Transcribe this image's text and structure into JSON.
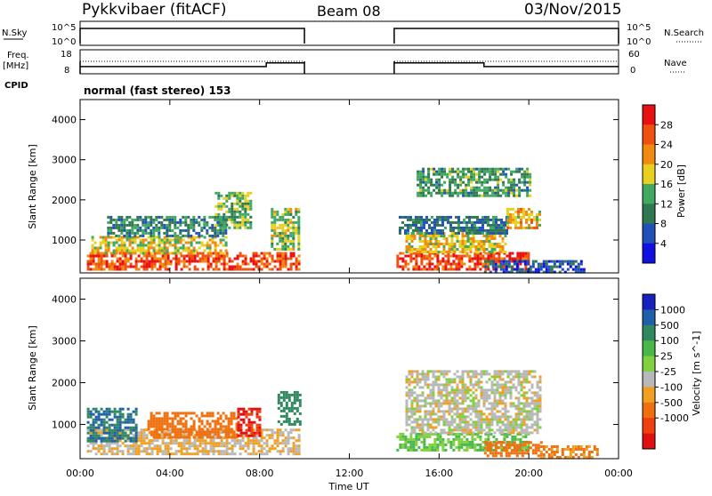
{
  "header": {
    "station": "Pykkvibaer (fitACF)",
    "beam": "Beam 08",
    "date": "03/Nov/2015"
  },
  "side_labels": {
    "nsky": "N.Sky",
    "freq": "Freq.",
    "freq_unit": "[MHz]",
    "cpid": "CPID",
    "nsearch": "N.Search",
    "nave": "Nave"
  },
  "cpid_text": "normal (fast stereo) 153",
  "noise_axis": {
    "top": "10^5",
    "bottom": "10^0"
  },
  "freq_axis": {
    "left_top": "18",
    "left_bottom": "8",
    "right_top": "60",
    "right_bottom": "0"
  },
  "axes": {
    "ylabel": "Slant Range [km]",
    "xlabel": "Time UT",
    "y_ticks": [
      "1000",
      "2000",
      "3000",
      "4000"
    ],
    "x_ticks": [
      "00:00",
      "04:00",
      "08:00",
      "12:00",
      "16:00",
      "20:00",
      "00:00"
    ]
  },
  "colorbars": {
    "power": {
      "label": "Power [dB]",
      "ticks": [
        "4",
        "8",
        "12",
        "16",
        "20",
        "24",
        "28"
      ],
      "colors": [
        "#1010e0",
        "#2050b8",
        "#307850",
        "#40a860",
        "#e8d020",
        "#f08a10",
        "#f05010",
        "#e81010"
      ]
    },
    "velocity": {
      "label": "Velocity [m s^-1]",
      "ticks": [
        "1000",
        "500",
        "100",
        "25",
        "-25",
        "-100",
        "-500",
        "-1000"
      ],
      "colors": [
        "#1820c0",
        "#2060a8",
        "#308860",
        "#48b848",
        "#80d040",
        "#b8b8b8",
        "#f0a020",
        "#f07010",
        "#f04010",
        "#e01010"
      ]
    }
  },
  "chart_data": {
    "type": "heatmap",
    "x_range_hours": [
      0,
      24
    ],
    "y_range_km": [
      180,
      4500
    ],
    "data_gap_hours": [
      10,
      14
    ],
    "frequency_mhz": [
      {
        "t": 0,
        "f": 11
      },
      {
        "t": 8.3,
        "f": 11
      },
      {
        "t": 8.3,
        "f": 12.5
      },
      {
        "t": 10,
        "f": 12.5
      },
      {
        "t": 14,
        "f": 12.5
      },
      {
        "t": 18,
        "f": 12.5
      },
      {
        "t": 18,
        "f": 11
      },
      {
        "t": 24,
        "f": 11
      }
    ],
    "power_regions": [
      {
        "t0": 0.3,
        "t1": 9.8,
        "r0": 300,
        "r1": 700,
        "val": 26
      },
      {
        "t0": 0.5,
        "t1": 6.5,
        "r0": 700,
        "r1": 1100,
        "val": 18
      },
      {
        "t0": 1.2,
        "t1": 6.5,
        "r0": 1100,
        "r1": 1600,
        "val": 10
      },
      {
        "t0": 6.0,
        "t1": 7.6,
        "r0": 1300,
        "r1": 2200,
        "val": 14
      },
      {
        "t0": 8.5,
        "t1": 9.8,
        "r0": 800,
        "r1": 1800,
        "val": 16
      },
      {
        "t0": 14.1,
        "t1": 20,
        "r0": 300,
        "r1": 700,
        "val": 27
      },
      {
        "t0": 14.5,
        "t1": 19,
        "r0": 700,
        "r1": 1200,
        "val": 19
      },
      {
        "t0": 14.2,
        "t1": 19,
        "r0": 1200,
        "r1": 1600,
        "val": 9
      },
      {
        "t0": 19,
        "t1": 20.5,
        "r0": 1300,
        "r1": 1800,
        "val": 20
      },
      {
        "t0": 18,
        "t1": 22.5,
        "r0": 200,
        "r1": 500,
        "val": 6
      },
      {
        "t0": 15,
        "t1": 20,
        "r0": 2100,
        "r1": 2800,
        "val": 12
      }
    ],
    "velocity_regions": [
      {
        "t0": 0.3,
        "t1": 9.8,
        "r0": 300,
        "r1": 900,
        "val": -25
      },
      {
        "t0": 0.3,
        "t1": 2.5,
        "r0": 600,
        "r1": 1400,
        "val": 500
      },
      {
        "t0": 3.0,
        "t1": 7.0,
        "r0": 700,
        "r1": 1300,
        "val": -150
      },
      {
        "t0": 7.0,
        "t1": 8.0,
        "r0": 700,
        "r1": 1400,
        "val": -500
      },
      {
        "t0": 8.8,
        "t1": 9.8,
        "r0": 1000,
        "r1": 1800,
        "val": 300
      },
      {
        "t0": 14.1,
        "t1": 20,
        "r0": 400,
        "r1": 800,
        "val": 100
      },
      {
        "t0": 14.5,
        "t1": 20.5,
        "r0": 800,
        "r1": 2300,
        "val": 0
      },
      {
        "t0": 18.0,
        "t1": 20.5,
        "r0": 250,
        "r1": 600,
        "val": -150
      },
      {
        "t0": 20.5,
        "t1": 23,
        "r0": 200,
        "r1": 500,
        "val": -100
      }
    ]
  }
}
